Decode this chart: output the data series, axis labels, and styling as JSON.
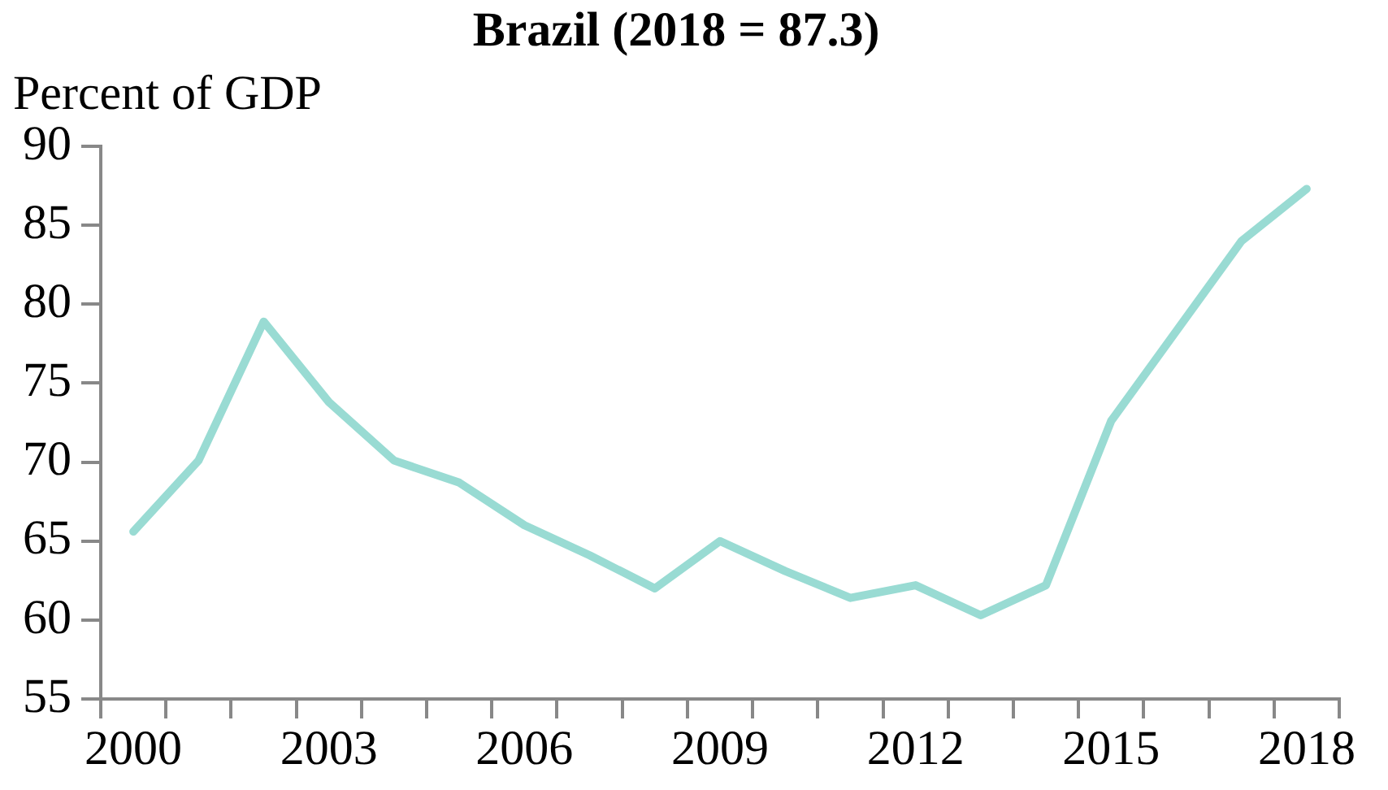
{
  "chart_data": {
    "type": "line",
    "title": "Brazil (2018 = 87.3)",
    "ylabel": "Percent of GDP",
    "categories": [
      "2000",
      null,
      null,
      "2003",
      null,
      null,
      "2006",
      null,
      null,
      "2009",
      null,
      null,
      "2012",
      null,
      null,
      "2015",
      null,
      null,
      "2018"
    ],
    "series": [
      {
        "color": "#99dbd3",
        "values": [
          65.6,
          70.1,
          78.9,
          73.8,
          70.1,
          68.7,
          66.0,
          64.1,
          62.0,
          65.0,
          63.1,
          61.4,
          62.2,
          60.3,
          62.2,
          72.6,
          78.3,
          84.0,
          87.3
        ]
      }
    ],
    "ylim": [
      55,
      90
    ],
    "yticks": [
      55,
      60,
      65,
      70,
      75,
      80,
      85,
      90
    ],
    "grid": false,
    "legend": false,
    "marker": "none",
    "line_style": "solid"
  }
}
